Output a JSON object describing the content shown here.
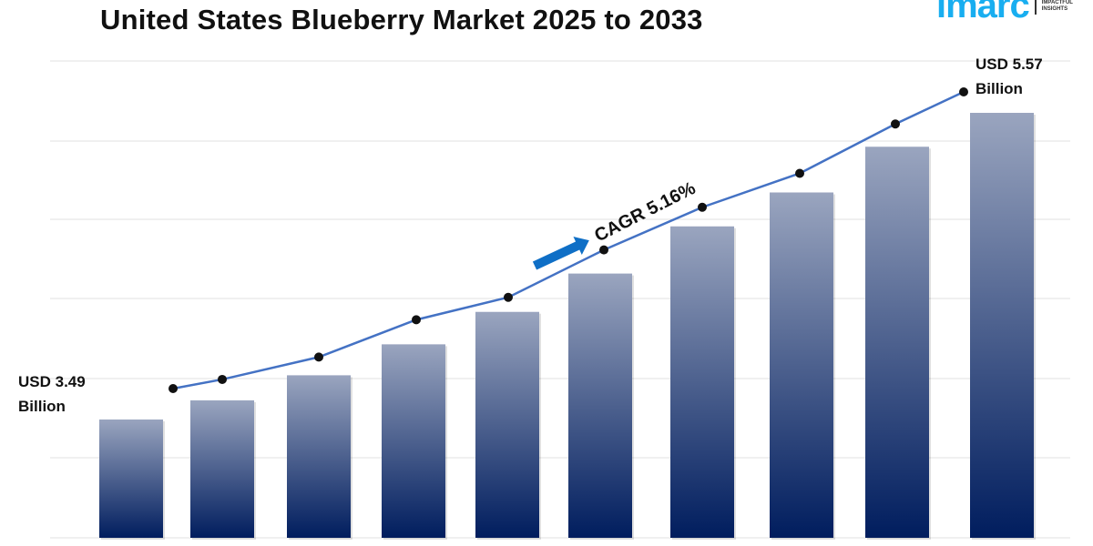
{
  "chart_data": {
    "type": "bar",
    "title": "United States Blueberry Market 2025 to 2033",
    "categories": [
      "",
      "",
      "",
      "",
      "",
      "",
      "",
      "",
      "",
      ""
    ],
    "series": [
      {
        "values": [
          3.49,
          3.62,
          3.79,
          4.0,
          4.22,
          4.48,
          4.8,
          5.03,
          5.34,
          5.57
        ]
      }
    ],
    "trend_line": true,
    "start_label": {
      "line1": "USD 3.49",
      "line2": "Billion"
    },
    "end_label": {
      "line1": "USD 5.57",
      "line2": "Billion"
    },
    "annotation": "CAGR 5.16%",
    "grid": true,
    "xlabel": "",
    "ylabel": "",
    "colors": {
      "bar_top": "#9aa5bf",
      "bar_bottom": "#001d5e",
      "line": "#4472c4",
      "marker": "#111111",
      "arrow": "#0f6fc6"
    }
  },
  "logo": {
    "word": "imarc",
    "tag1": "IMPACTFUL",
    "tag2": "INSIGHTS"
  }
}
